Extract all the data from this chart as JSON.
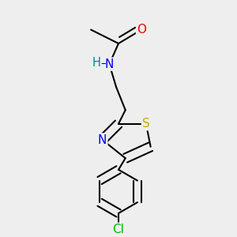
{
  "background_color": "#eeeeee",
  "atom_colors": {
    "C": "#000000",
    "N": "#0000ff",
    "O": "#ff0000",
    "S": "#ccaa00",
    "Cl": "#00bb00",
    "H": "#008888"
  },
  "bond_color": "#000000",
  "bond_width": 1.5,
  "font_size": 10.5
}
